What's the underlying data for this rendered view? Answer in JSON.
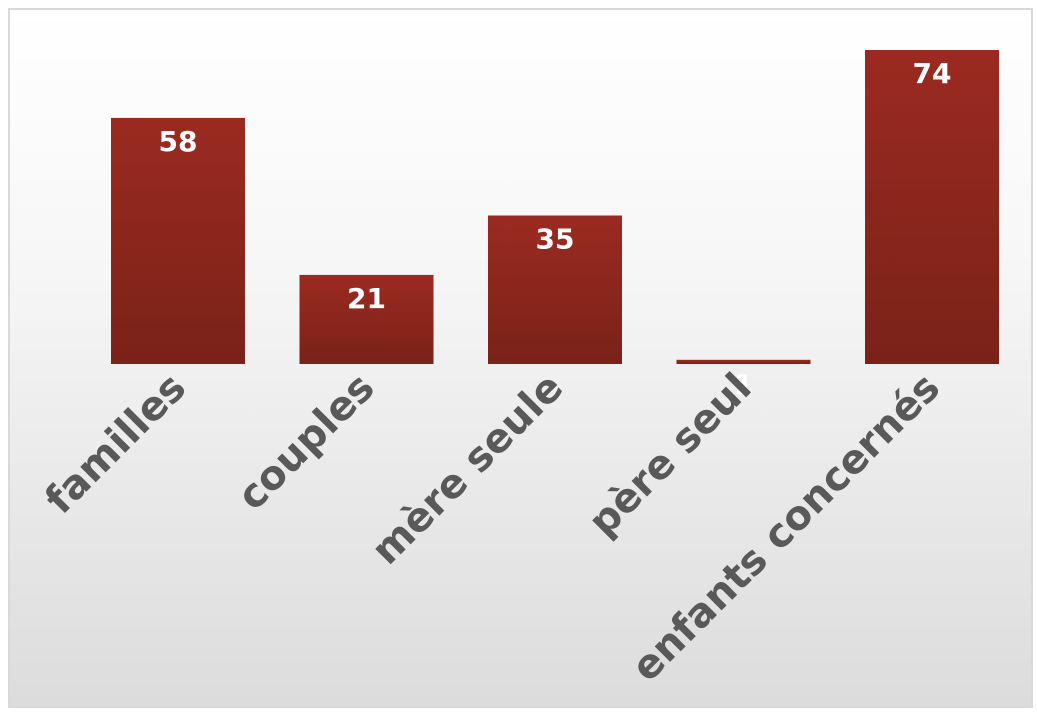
{
  "chart_data": {
    "type": "bar",
    "categories": [
      "familles",
      "couples",
      "mère seule",
      "père seul",
      "enfants concernés"
    ],
    "values": [
      58,
      21,
      35,
      1,
      74
    ],
    "title": "",
    "xlabel": "",
    "ylabel": "",
    "ylim": [
      0,
      74
    ],
    "grid": false,
    "legend": "none",
    "data_labels": true,
    "colors": {
      "bar_top": "#9b2a21",
      "bar_bottom": "#7a2218",
      "data_label": "#ffffff",
      "category_label": "#595959"
    }
  }
}
